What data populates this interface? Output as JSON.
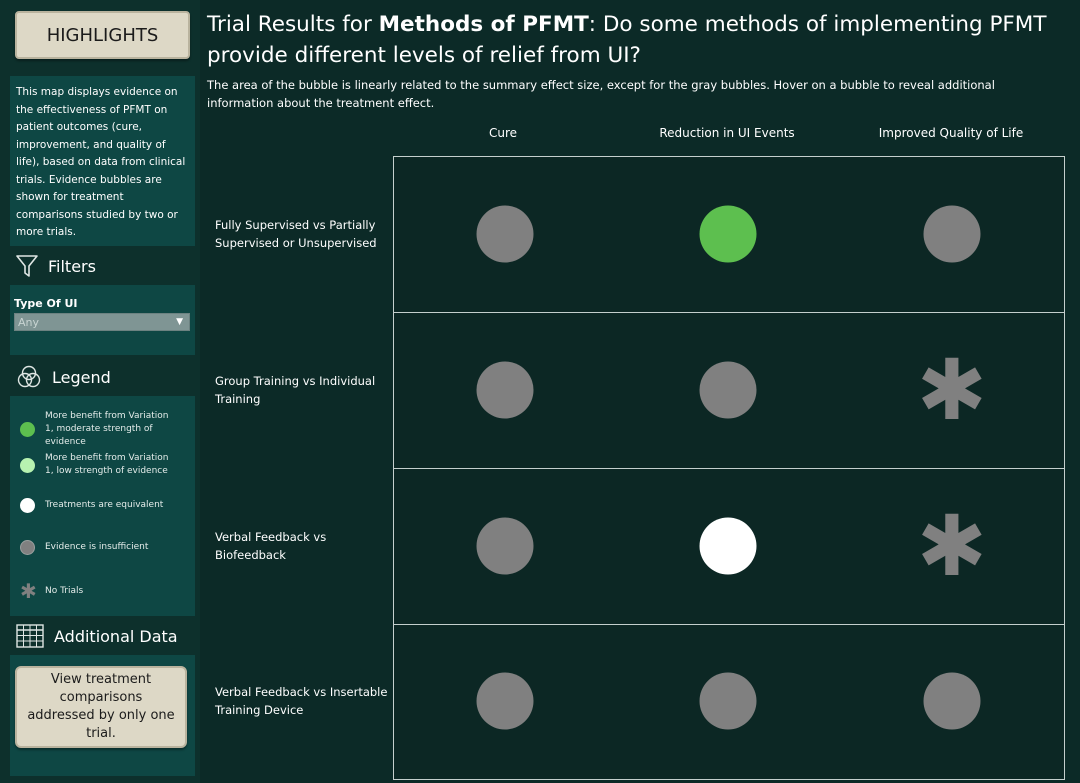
{
  "sidebar": {
    "highlights_label": "HIGHLIGHTS",
    "intro_text": "This map displays evidence on the effectiveness of PFMT on patient outcomes (cure, improvement, and quality of life), based on data from clinical trials. Evidence bubbles are shown for treatment comparisons studied by two or more trials.",
    "filters_title": "Filters",
    "filter_label": "Type Of UI",
    "filter_value": "Any",
    "legend_title": "Legend",
    "legend": [
      {
        "label": "More benefit from Variation 1, moderate strength of evidence",
        "color": "#5dbf4f",
        "icon": "circle"
      },
      {
        "label": "More benefit from Variation 1, low strength of evidence",
        "color": "#b7f2b0",
        "icon": "circle"
      },
      {
        "label": "Treatments are equivalent",
        "color": "#ffffff",
        "icon": "circle"
      },
      {
        "label": "Evidence is insufficient",
        "color": "#808080",
        "icon": "circle"
      },
      {
        "label": "No Trials",
        "color": "#808080",
        "icon": "asterisk"
      }
    ],
    "additional_title": "Additional Data",
    "view_button_label": "View treatment comparisons addressed by only one trial."
  },
  "main": {
    "title_prefix": "Trial Results for ",
    "title_bold": "Methods of PFMT",
    "title_suffix": ": Do some methods of implementing PFMT provide different levels of relief from UI?",
    "subtitle": "The area of the bubble is linearly related to the summary effect size, except for the gray bubbles. Hover on a bubble to reveal additional information about the treatment effect.",
    "columns": [
      "Cure",
      "Reduction in UI Events",
      "Improved Quality of Life"
    ],
    "rows": [
      {
        "label": "Fully Supervised vs Partially Supervised or Unsupervised",
        "cells": [
          "insufficient",
          "moderate",
          "insufficient"
        ]
      },
      {
        "label": "Group Training vs Individual Training",
        "cells": [
          "insufficient",
          "insufficient",
          "no_trials"
        ]
      },
      {
        "label": "Verbal Feedback vs Biofeedback",
        "cells": [
          "insufficient",
          "equivalent",
          "no_trials"
        ]
      },
      {
        "label": "Verbal Feedback vs Insertable Training Device",
        "cells": [
          "insufficient",
          "insufficient",
          "insufficient"
        ]
      }
    ],
    "colors": {
      "moderate": "#5dbf4f",
      "low": "#b7f2b0",
      "equivalent": "#ffffff",
      "insufficient": "#808080",
      "no_trials": "#808080"
    }
  }
}
